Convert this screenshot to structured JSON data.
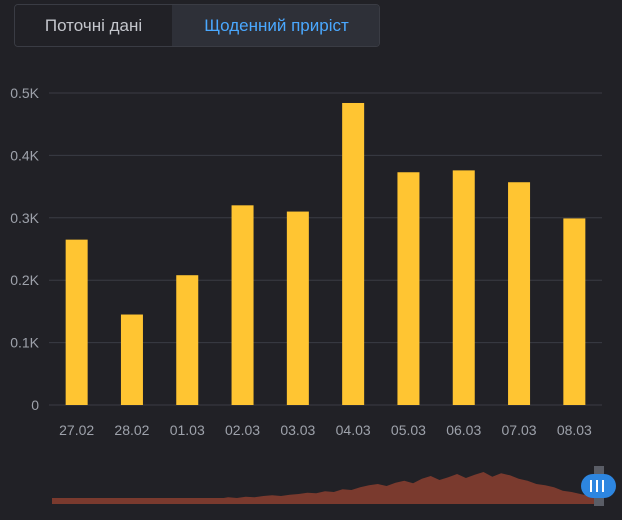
{
  "tabs": [
    {
      "label": "Поточні дані",
      "active": false
    },
    {
      "label": "Щоденний приріст",
      "active": true
    }
  ],
  "colors": {
    "background": "#212126",
    "bar": "#ffc532",
    "active_tab_text": "#4aa8ff",
    "navigator_fill": "#7a3a2e",
    "navigator_handle": "#2d86e0"
  },
  "chart_data": {
    "type": "bar",
    "categories": [
      "27.02",
      "28.02",
      "01.03",
      "02.03",
      "03.03",
      "04.03",
      "05.03",
      "06.03",
      "07.03",
      "08.03"
    ],
    "values": [
      265,
      145,
      208,
      320,
      310,
      484,
      373,
      376,
      357,
      299
    ],
    "y_ticks": [
      {
        "value": 0,
        "label": "0"
      },
      {
        "value": 100,
        "label": "0.1K"
      },
      {
        "value": 200,
        "label": "0.2K"
      },
      {
        "value": 300,
        "label": "0.3K"
      },
      {
        "value": 400,
        "label": "0.4K"
      },
      {
        "value": 500,
        "label": "0.5K"
      }
    ],
    "ylim": [
      0,
      500
    ],
    "grid": true
  },
  "navigator": {
    "handle_icon": "range-handle-icon",
    "series": [
      3,
      3,
      4,
      3,
      4,
      4,
      5,
      4,
      5,
      5,
      6,
      5,
      6,
      7,
      6,
      7,
      8,
      7,
      9,
      8,
      10,
      9,
      11,
      10,
      12,
      13,
      12,
      14,
      15,
      17,
      16,
      19,
      18,
      22,
      21,
      25,
      28,
      30,
      27,
      32,
      35,
      31,
      38,
      42,
      36,
      40,
      45,
      39,
      44,
      48,
      41,
      46,
      43,
      38,
      35,
      30,
      28,
      25,
      20,
      18,
      15,
      12,
      10
    ]
  }
}
